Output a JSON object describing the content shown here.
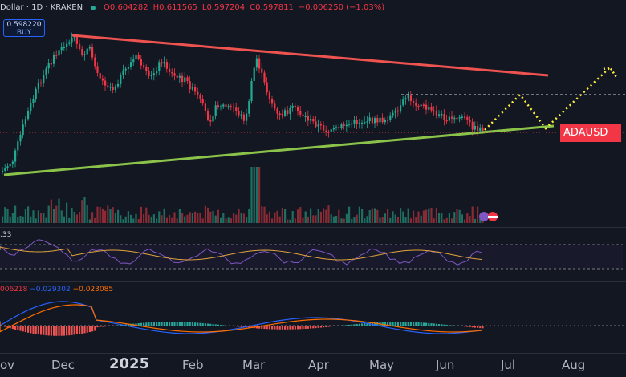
{
  "header": {
    "symbol_text": "Dollar · 1D · KRAKEN",
    "open": "O0.604282",
    "high": "H0.611565",
    "low": "L0.597204",
    "close": "C0.597811",
    "change": "−0.006250 (−1.03%)"
  },
  "buy_button": {
    "price": "0.598220",
    "label": "BUY"
  },
  "price_tag": {
    "label": "ADAUSD"
  },
  "rsi": {
    "label": ".33"
  },
  "macd": {
    "v1": "006218",
    "v2": "−0.029302",
    "v3": "−0.023085"
  },
  "x_axis": {
    "labels": [
      "ov",
      "Dec",
      "2025",
      "Feb",
      "Mar",
      "Apr",
      "May",
      "Jun",
      "Jul",
      "Aug"
    ]
  },
  "colors": {
    "background": "#131722",
    "bull": "#22ab94",
    "bear": "#f23645",
    "resistance_line": "#ef5350",
    "support_line": "#8bc34a",
    "projection": "#ffeb3b"
  }
}
